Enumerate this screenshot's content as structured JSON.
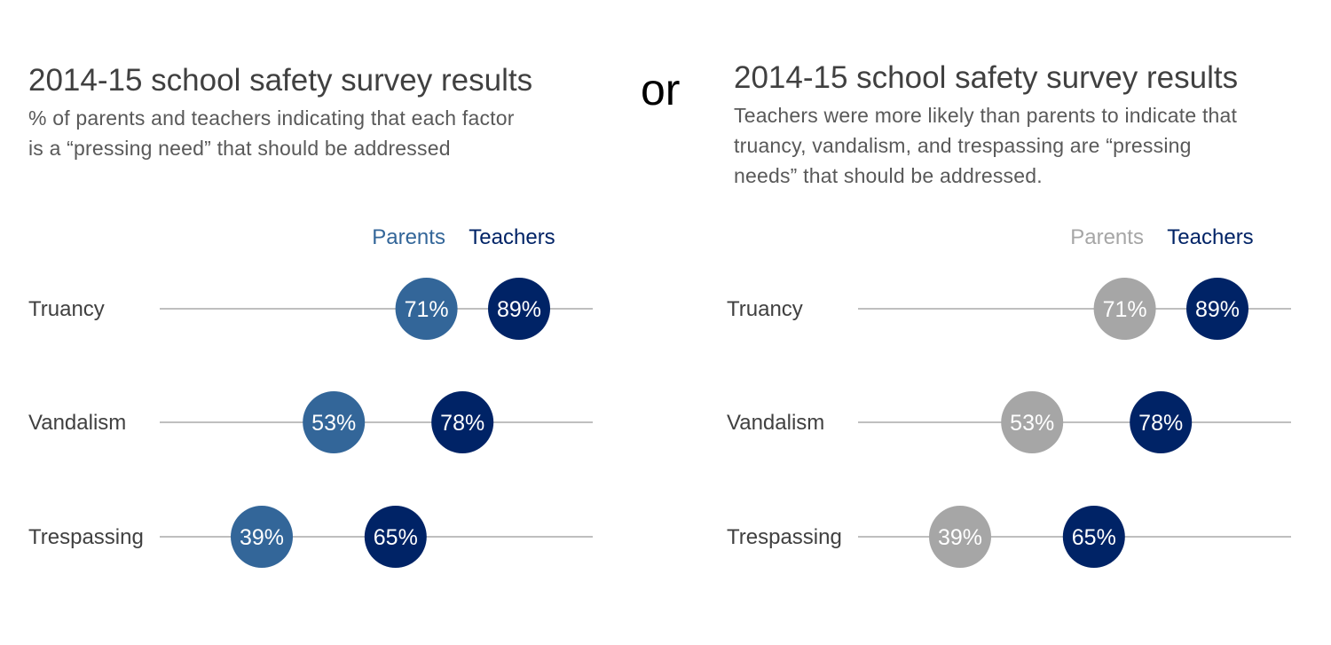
{
  "separator_label": "or",
  "colors": {
    "parents_blue": "#336699",
    "teachers_navy": "#002366",
    "parents_gray": "#A6A6A6",
    "row_line": "#BFBFBF",
    "row_label": "#404040",
    "bubble_text": "#FFFFFF"
  },
  "panels": [
    {
      "title": "2014-15 school safety survey results",
      "subtitle_lines": [
        "% of parents and teachers indicating that each factor",
        "is a “pressing need” that should be addressed"
      ]
    },
    {
      "title": "2014-15 school safety survey results",
      "subtitle_lines": [
        "Teachers were more likely than parents to indicate that",
        "truancy, vandalism, and trespassing are “pressing",
        "needs” that should be addressed."
      ]
    }
  ],
  "chart_data": [
    {
      "type": "scatter",
      "title": "2014-15 school safety survey results",
      "categories": [
        "Truancy",
        "Vandalism",
        "Trespassing"
      ],
      "series": [
        {
          "name": "Parents",
          "values": [
            71,
            53,
            39
          ],
          "labels": [
            "71%",
            "53%",
            "39%"
          ],
          "color": "#336699"
        },
        {
          "name": "Teachers",
          "values": [
            89,
            78,
            65
          ],
          "labels": [
            "89%",
            "78%",
            "65%"
          ],
          "color": "#002366"
        }
      ],
      "xlim": [
        20,
        100
      ],
      "grid": false,
      "legend": "top-right"
    },
    {
      "type": "scatter",
      "title": "2014-15 school safety survey results",
      "categories": [
        "Truancy",
        "Vandalism",
        "Trespassing"
      ],
      "series": [
        {
          "name": "Parents",
          "values": [
            71,
            53,
            39
          ],
          "labels": [
            "71%",
            "53%",
            "39%"
          ],
          "color": "#A6A6A6"
        },
        {
          "name": "Teachers",
          "values": [
            89,
            78,
            65
          ],
          "labels": [
            "89%",
            "78%",
            "65%"
          ],
          "color": "#002366"
        }
      ],
      "xlim": [
        20,
        100
      ],
      "grid": false,
      "legend": "top-right"
    }
  ]
}
